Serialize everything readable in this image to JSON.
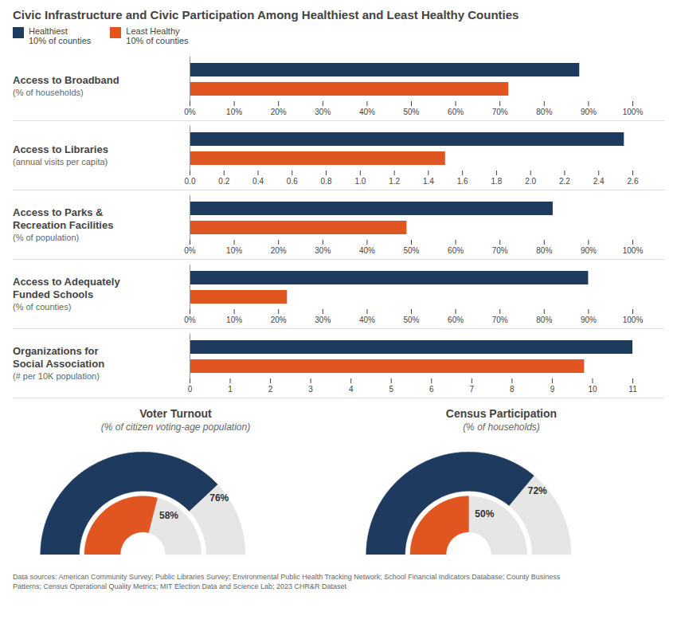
{
  "chart_data": [
    {
      "type": "bar",
      "orientation": "horizontal",
      "title": "Civic Infrastructure and Civic Participation Among Healthiest and Least Healthy Counties",
      "legend": "upper left",
      "ylabel": "Access to Broadband\n(% of households)",
      "categories": [
        null
      ],
      "series": [
        {
          "name": "Healthiest\n10% of counties",
          "color": "#1e3a5f",
          "values": [
            88
          ]
        },
        {
          "name": "Least Healthy\n10% of counties",
          "color": "#e05520",
          "values": [
            72
          ]
        }
      ],
      "xlim": [
        0,
        100
      ],
      "xticks": [
        {
          "value": 0,
          "label": "0%"
        },
        {
          "value": 10,
          "label": "10%"
        },
        {
          "value": 20,
          "label": "20%"
        },
        {
          "value": 30,
          "label": "30%"
        },
        {
          "value": 40,
          "label": "40%"
        },
        {
          "value": 50,
          "label": "50%"
        },
        {
          "value": 60,
          "label": "60%"
        },
        {
          "value": 70,
          "label": "70%"
        },
        {
          "value": 80,
          "label": "80%"
        },
        {
          "value": 90,
          "label": "90%"
        },
        {
          "value": 100,
          "label": "100%"
        }
      ],
      "tick_labels": "x"
    },
    {
      "type": "bar",
      "orientation": "horizontal",
      "ylabel": "Access to Libraries\n(annual visits per capita)",
      "categories": [
        null
      ],
      "series": [
        {
          "name": "Healthiest\n10% of counties",
          "color": "#1e3a5f",
          "values": [
            2.55
          ]
        },
        {
          "name": "Least Healthy\n10% of counties",
          "color": "#e05520",
          "values": [
            1.5
          ]
        }
      ],
      "xlim": [
        0,
        2.6
      ],
      "xticks": [
        {
          "value": 0,
          "label": "0.0"
        },
        0.2,
        0.4,
        0.6,
        0.8,
        {
          "value": 1,
          "label": "1.0"
        },
        1.2,
        1.4,
        1.6,
        1.8,
        {
          "value": 2,
          "label": "2.0"
        },
        2.2,
        2.4,
        2.6
      ],
      "tick_labels": "x"
    },
    {
      "type": "bar",
      "orientation": "horizontal",
      "ylabel": "Access to Parks &\nRecreation Facilities\n(% of population)",
      "categories": [
        null
      ],
      "series": [
        {
          "name": "Healthiest\n10% of counties",
          "color": "#1e3a5f",
          "values": [
            82
          ]
        },
        {
          "name": "Least Healthy\n10% of counties",
          "color": "#e05520",
          "values": [
            49
          ]
        }
      ],
      "xlim": [
        0,
        100
      ],
      "xticks": [
        {
          "value": 0,
          "label": "0%"
        },
        {
          "value": 10,
          "label": "10%"
        },
        {
          "value": 20,
          "label": "20%"
        },
        {
          "value": 30,
          "label": "30%"
        },
        {
          "value": 40,
          "label": "40%"
        },
        {
          "value": 50,
          "label": "50%"
        },
        {
          "value": 60,
          "label": "60%"
        },
        {
          "value": 70,
          "label": "70%"
        },
        {
          "value": 80,
          "label": "80%"
        },
        {
          "value": 90,
          "label": "90%"
        },
        {
          "value": 100,
          "label": "100%"
        }
      ],
      "tick_labels": "x"
    },
    {
      "type": "bar",
      "orientation": "horizontal",
      "ylabel": "Access to Adequately\nFunded Schools\n(% of counties)",
      "categories": [
        null
      ],
      "series": [
        {
          "name": "Healthiest\n10% of counties",
          "color": "#1e3a5f",
          "values": [
            90
          ]
        },
        {
          "name": "Least Healthy\n10% of counties",
          "color": "#e05520",
          "values": [
            22
          ]
        }
      ],
      "xlim": [
        0,
        100
      ],
      "xticks": [
        {
          "value": 0,
          "label": "0%"
        },
        {
          "value": 10,
          "label": "10%"
        },
        {
          "value": 20,
          "label": "20%"
        },
        {
          "value": 30,
          "label": "30%"
        },
        {
          "value": 40,
          "label": "40%"
        },
        {
          "value": 50,
          "label": "50%"
        },
        {
          "value": 60,
          "label": "60%"
        },
        {
          "value": 70,
          "label": "70%"
        },
        {
          "value": 80,
          "label": "80%"
        },
        {
          "value": 90,
          "label": "90%"
        },
        {
          "value": 100,
          "label": "100%"
        }
      ],
      "tick_labels": "x"
    },
    {
      "type": "bar",
      "orientation": "horizontal",
      "ylabel": "Organizations for\nSocial Association\n(# per 10K population)",
      "categories": [
        null
      ],
      "series": [
        {
          "name": "Healthiest\n10% of counties",
          "color": "#1e3a5f",
          "values": [
            11.0
          ]
        },
        {
          "name": "Least Healthy\n10% of counties",
          "color": "#e05520",
          "values": [
            9.8
          ]
        }
      ],
      "xlim": [
        0,
        11
      ],
      "xticks": [
        0,
        1,
        2,
        3,
        4,
        5,
        6,
        7,
        8,
        9,
        10,
        11
      ],
      "tick_labels": "x"
    },
    {
      "type": "donut",
      "title": "Voter Turnout",
      "subtitle": "(% of citizen voting-age population)",
      "categories": [
        null
      ],
      "series": [
        {
          "name": "Healthiest\n10% of counties",
          "color": "#1e3a5f",
          "values": [
            76
          ],
          "value_labels": [
            "76%"
          ]
        },
        {
          "name": "Least Healthy\n10% of counties",
          "color": "#e05520",
          "values": [
            58
          ],
          "value_labels": [
            "58%"
          ]
        }
      ],
      "xlim": [
        0,
        100
      ],
      "data_labels": true,
      "tick_labels": false
    },
    {
      "type": "donut",
      "title": "Census Participation",
      "subtitle": "(% of households)",
      "categories": [
        null
      ],
      "series": [
        {
          "name": "Healthiest\n10% of counties",
          "color": "#1e3a5f",
          "values": [
            72
          ],
          "value_labels": [
            "72%"
          ]
        },
        {
          "name": "Least Healthy\n10% of counties",
          "color": "#e05520",
          "values": [
            50
          ],
          "value_labels": [
            "50%"
          ]
        }
      ],
      "xlim": [
        0,
        100
      ],
      "data_labels": true,
      "tick_labels": false,
      "annotations": [
        "Data sources: American Community Survey; Public Libraries Survey; Environmental Public Health Tracking Network; School Financial Indicators Database; County Business\nPatterns; Census Operational Quality Metrics; MIT Election Data and Science Lab; 2023 CHR&R Dataset"
      ]
    }
  ]
}
